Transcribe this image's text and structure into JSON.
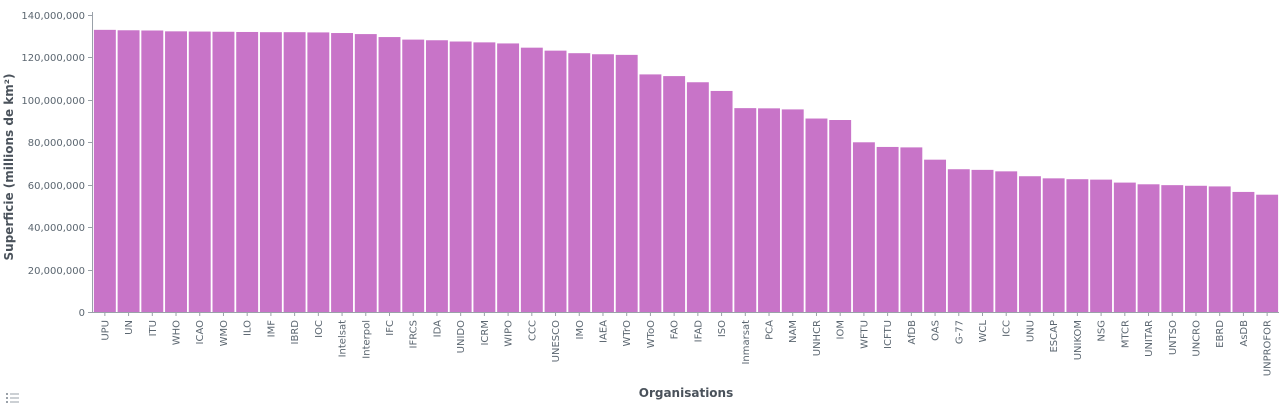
{
  "colors": {
    "bar": "#c874c8",
    "axis": "#9aa1a9",
    "text": "#5b6670"
  },
  "legend_toggle_icon": "list-icon",
  "chart_data": {
    "type": "bar",
    "title": "",
    "xlabel": "Organisations",
    "ylabel": "Superficie (millions de km²)",
    "ylim": [
      0,
      140000000
    ],
    "y_ticks": [
      0,
      20000000,
      40000000,
      60000000,
      80000000,
      100000000,
      120000000,
      140000000
    ],
    "y_tick_labels": [
      "0",
      "20,000,000",
      "40,000,000",
      "60,000,000",
      "80,000,000",
      "100,000,000",
      "120,000,000",
      "140,000,000"
    ],
    "grid": false,
    "categories": [
      "UPU",
      "UN",
      "ITU",
      "WHO",
      "ICAO",
      "WMO",
      "ILO",
      "IMF",
      "IBRD",
      "IOC",
      "Intelsat",
      "Interpol",
      "IFC",
      "IFRCS",
      "IDA",
      "UNIDO",
      "ICRM",
      "WIPO",
      "CCC",
      "UNESCO",
      "IMO",
      "IAEA",
      "WTrO",
      "WToO",
      "FAO",
      "IFAD",
      "ISO",
      "Inmarsat",
      "PCA",
      "NAM",
      "UNHCR",
      "IOM",
      "WFTU",
      "ICFTU",
      "AfDB",
      "OAS",
      "G-77",
      "WCL",
      "ICC",
      "UNU",
      "ESCAP",
      "UNIKOM",
      "NSG",
      "MTCR",
      "UNITAR",
      "UNTSO",
      "UNCRO",
      "EBRD",
      "AsDB",
      "UNPROFOR"
    ],
    "values": [
      133000000,
      132800000,
      132700000,
      132300000,
      132200000,
      132100000,
      132000000,
      131900000,
      131900000,
      131800000,
      131500000,
      131000000,
      129600000,
      128400000,
      128100000,
      127500000,
      127100000,
      126600000,
      124600000,
      123200000,
      122000000,
      121500000,
      121200000,
      112000000,
      111200000,
      108300000,
      104200000,
      96100000,
      96000000,
      95500000,
      91200000,
      90500000,
      80000000,
      77800000,
      77600000,
      71800000,
      67300000,
      67000000,
      66300000,
      64000000,
      63000000,
      62600000,
      62400000,
      61000000,
      60200000,
      59800000,
      59500000,
      59200000,
      56600000,
      55300000
    ]
  }
}
